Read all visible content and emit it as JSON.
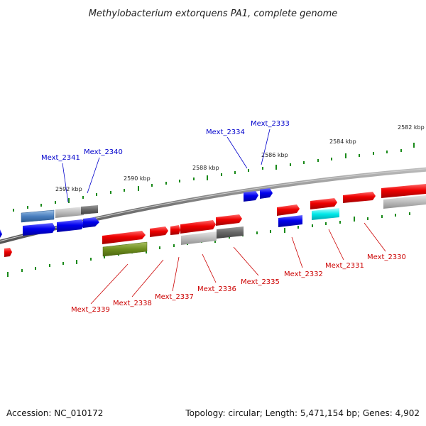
{
  "title": "Methylobacterium extorquens PA1, complete genome",
  "accession": "Accession: NC_010172",
  "topology": "Topology: circular; Length: 5,471,154 bp; Genes: 4,902",
  "colors": {
    "backbone": "#7a7a7a",
    "tick": "#1a8a1a",
    "forward_gene": "#e00000",
    "reverse_gene": "#0000dd",
    "label_red": "#cc0000",
    "label_blue": "#0000cc"
  },
  "kbp_labels": [
    "2582 kbp",
    "2584 kbp",
    "2586 kbp",
    "2588 kbp",
    "2590 kbp",
    "2592 kbp"
  ],
  "gene_labels": {
    "top": [
      "Mext_2341",
      "Mext_2340",
      "Mext_2334",
      "Mext_2333"
    ],
    "bottom": [
      "Mext_2339",
      "Mext_2338",
      "Mext_2337",
      "Mext_2336",
      "Mext_2335",
      "Mext_2332",
      "Mext_2331",
      "Mext_2330"
    ]
  }
}
